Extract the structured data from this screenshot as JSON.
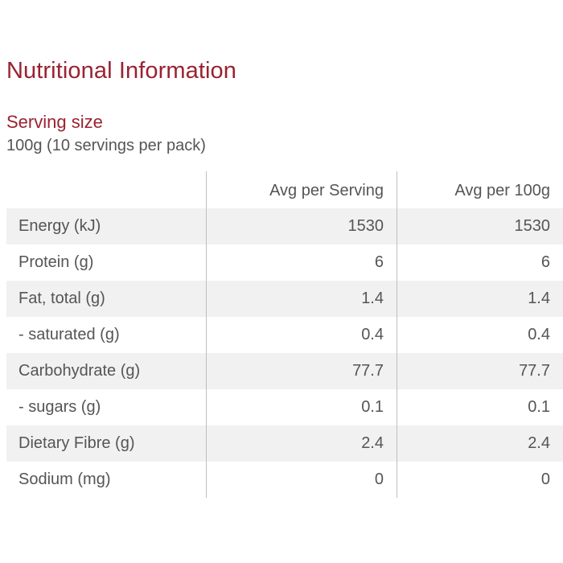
{
  "title": "Nutritional Information",
  "serving": {
    "label": "Serving size",
    "value": "100g (10 servings per pack)"
  },
  "table": {
    "headers": [
      "",
      "Avg per Serving",
      "Avg per 100g"
    ],
    "rows": [
      {
        "name": "Energy (kJ)",
        "per_serving": "1530",
        "per_100g": "1530"
      },
      {
        "name": "Protein (g)",
        "per_serving": "6",
        "per_100g": "6"
      },
      {
        "name": "Fat, total (g)",
        "per_serving": "1.4",
        "per_100g": "1.4"
      },
      {
        "name": "- saturated (g)",
        "per_serving": "0.4",
        "per_100g": "0.4"
      },
      {
        "name": "Carbohydrate (g)",
        "per_serving": "77.7",
        "per_100g": "77.7"
      },
      {
        "name": "- sugars (g)",
        "per_serving": "0.1",
        "per_100g": "0.1"
      },
      {
        "name": "Dietary Fibre (g)",
        "per_serving": "2.4",
        "per_100g": "2.4"
      },
      {
        "name": "Sodium (mg)",
        "per_serving": "0",
        "per_100g": "0"
      }
    ]
  },
  "colors": {
    "title": "#9a2231",
    "text": "#555555",
    "row_shade": "#f1f1f1",
    "divider": "#bfbfbf"
  }
}
